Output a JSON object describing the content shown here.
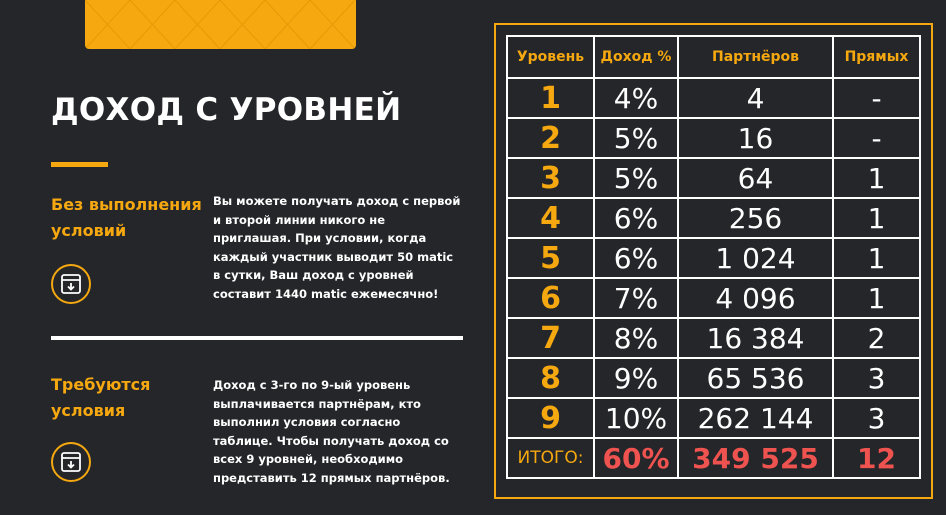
{
  "page": {
    "title": "ДОХОД С УРОВНЕЙ"
  },
  "sections": [
    {
      "heading": "Без выполнения условий",
      "text": "Вы можете получать доход с первой и второй линии никого не приглашая. При условии, когда каждый участник выводит 50 matic в сутки, Ваш доход с уровней составит 1440 matic ежемесячно!",
      "icon": "download-window-icon"
    },
    {
      "heading": "Требуются условия",
      "text": "Доход с 3-го по 9-ый уровень выплачивается партнёрам, кто выполнил условия согласно таблице. Чтобы получать доход со всех 9 уровней, необходимо представить 12 прямых партнёров.",
      "icon": "download-window-icon"
    }
  ],
  "table": {
    "headers": [
      "Уровень",
      "Доход %",
      "Партнёров",
      "Прямых"
    ],
    "rows": [
      {
        "level": "1",
        "income": "4%",
        "partners": "4",
        "direct": "-"
      },
      {
        "level": "2",
        "income": "5%",
        "partners": "16",
        "direct": "-"
      },
      {
        "level": "3",
        "income": "5%",
        "partners": "64",
        "direct": "1"
      },
      {
        "level": "4",
        "income": "6%",
        "partners": "256",
        "direct": "1"
      },
      {
        "level": "5",
        "income": "6%",
        "partners": "1 024",
        "direct": "1"
      },
      {
        "level": "6",
        "income": "7%",
        "partners": "4 096",
        "direct": "1"
      },
      {
        "level": "7",
        "income": "8%",
        "partners": "16 384",
        "direct": "2"
      },
      {
        "level": "8",
        "income": "9%",
        "partners": "65 536",
        "direct": "3"
      },
      {
        "level": "9",
        "income": "10%",
        "partners": "262 144",
        "direct": "3"
      }
    ],
    "total": {
      "label": "ИТОГО:",
      "income": "60%",
      "partners": "349 525",
      "direct": "12"
    }
  },
  "colors": {
    "background": "#25262a",
    "accent": "#f5a80f",
    "total_highlight": "#ef5350",
    "text": "#ffffff"
  }
}
